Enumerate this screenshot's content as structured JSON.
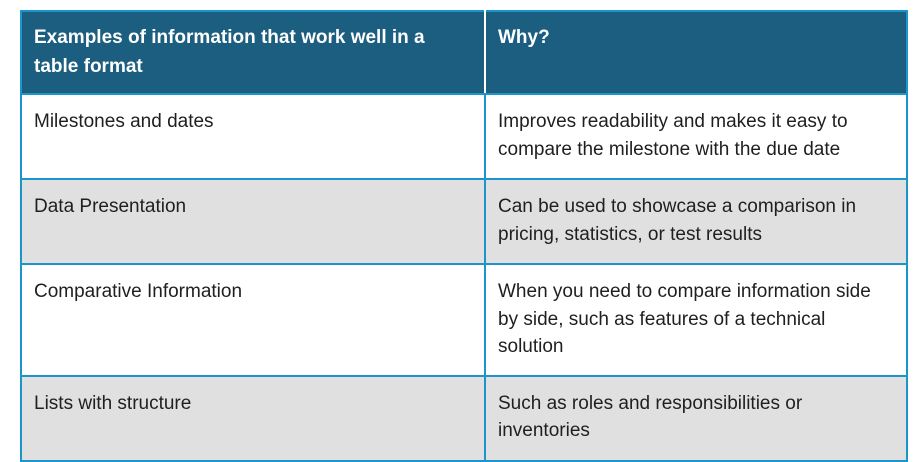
{
  "table": {
    "headers": [
      {
        "label": "Examples of information that work well in a table format"
      },
      {
        "label": "Why?"
      }
    ],
    "rows": [
      {
        "example": "Milestones and dates",
        "why": "Improves readability and makes it easy to compare the milestone with the due date"
      },
      {
        "example": "Data Presentation",
        "why": "Can be used to showcase a comparison in pricing, statistics, or test results"
      },
      {
        "example": "Comparative Information",
        "why": "When you need to compare information side by side, such as features of a technical solution"
      },
      {
        "example": "Lists with structure",
        "why": "Such as roles and responsibilities or inventories"
      }
    ],
    "colors": {
      "header_bg": "#1b5e7f",
      "header_text": "#ffffff",
      "border": "#1c95cd",
      "row_bg": "#ffffff",
      "row_alt_bg": "#e0e0e0",
      "body_text": "#1f1f1f"
    }
  }
}
